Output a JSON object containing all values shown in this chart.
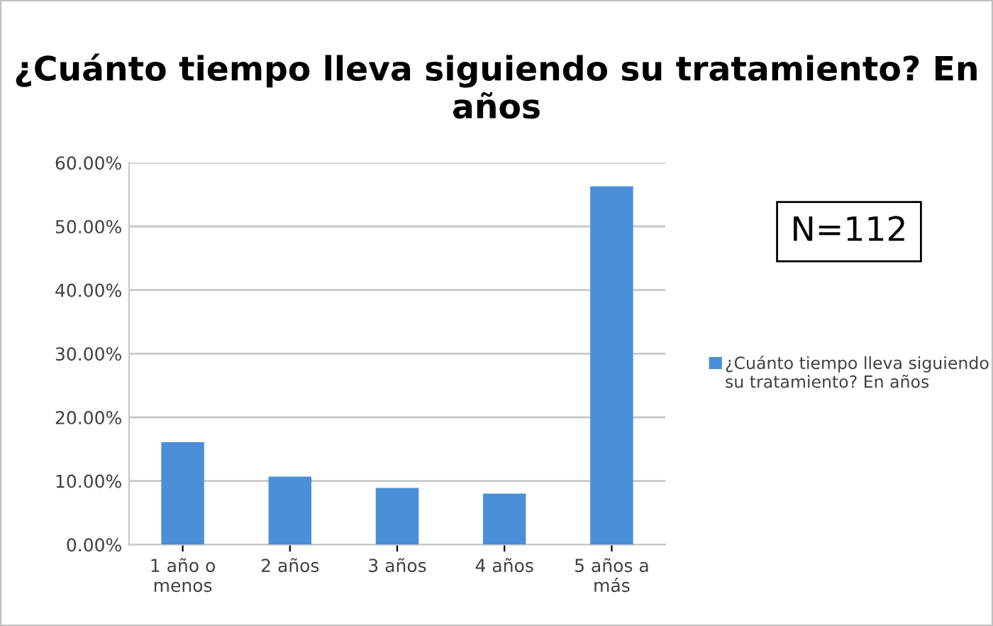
{
  "chart_data": {
    "type": "bar",
    "title": "¿Cuánto tiempo lleva siguiendo su tratamiento? En años",
    "categories": [
      "1 año o menos",
      "2 años",
      "3 años",
      "4 años",
      "5 años a más"
    ],
    "series": [
      {
        "name": "¿Cuánto tiempo lleva siguiendo su tratamiento? En años",
        "color": "#4a8fd8",
        "values": [
          16.1,
          10.7,
          8.9,
          8.0,
          56.3
        ]
      }
    ],
    "ylim": [
      0,
      60
    ],
    "yticks": [
      {
        "value": 0,
        "label": "0.00%"
      },
      {
        "value": 10,
        "label": "10.00%"
      },
      {
        "value": 20,
        "label": "20.00%"
      },
      {
        "value": 30,
        "label": "30.00%"
      },
      {
        "value": 40,
        "label": "40.00%"
      },
      {
        "value": 50,
        "label": "50.00%"
      },
      {
        "value": 60,
        "label": "60.00%"
      }
    ],
    "grid": "y",
    "legend": "right",
    "annotations": [
      "N=112"
    ]
  }
}
